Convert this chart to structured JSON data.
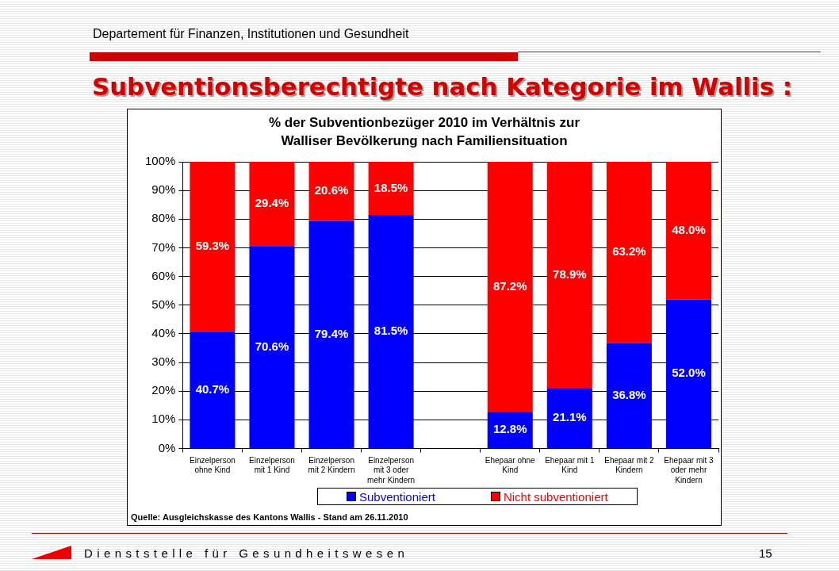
{
  "chart_data": {
    "type": "bar",
    "title": "Subventionsberechtigte nach Kategorie im Wallis :",
    "subtitle": "% der Subventionbezüger 2010 im Verhältnis zur Walliser Bevölkerung nach Familiensituation",
    "categories": [
      "Einzelperson ohne Kind",
      "Einzelperson mit 1 Kind",
      "Einzelperson mit 2 Kindern",
      "Einzelperson mit 3 oder mehr Kindern",
      null,
      "Ehepaar ohne Kind",
      "Ehepaar mit 1 Kind",
      "Ehepaar mit 2 Kindern",
      "Ehepaar mit 3 oder mehr Kindern"
    ],
    "series": [
      {
        "name": "Subventioniert",
        "color": "#0000ff",
        "values": [
          40.7,
          70.6,
          79.4,
          81.5,
          null,
          12.8,
          21.1,
          36.8,
          52.0
        ],
        "value_labels": [
          "40.7%",
          "70.6%",
          "79.4%",
          "81.5%",
          null,
          "12.8%",
          "21.1%",
          "36.8%",
          "52.0%"
        ]
      },
      {
        "name": "Nicht subventioniert",
        "color": "#ff0000",
        "values": [
          59.3,
          29.4,
          20.6,
          18.5,
          null,
          87.2,
          78.9,
          63.2,
          48.0
        ],
        "value_labels": [
          "59.3%",
          "29.4%",
          "20.6%",
          "18.5%",
          null,
          "87.2%",
          "78.9%",
          "63.2%",
          "48.0%"
        ]
      }
    ],
    "stacked": true,
    "ylim": [
      0,
      100
    ],
    "yticks": [
      {
        "value": 0,
        "label": "0%"
      },
      {
        "value": 10,
        "label": "10%"
      },
      {
        "value": 20,
        "label": "20%"
      },
      {
        "value": 30,
        "label": "30%"
      },
      {
        "value": 40,
        "label": "40%"
      },
      {
        "value": 50,
        "label": "50%"
      },
      {
        "value": 60,
        "label": "60%"
      },
      {
        "value": 70,
        "label": "70%"
      },
      {
        "value": 80,
        "label": "80%"
      },
      {
        "value": 90,
        "label": "90%"
      },
      {
        "value": 100,
        "label": "100%"
      }
    ],
    "grid": "y",
    "legend": "bottom",
    "annotations": [
      "Departement für Finanzen, Institutionen und Gesundheit",
      "Quelle: Ausgleichskasse des Kantons Wallis - Stand am 26.11.2010",
      "Dienststelle für Gesundheitswesen",
      "15"
    ]
  }
}
